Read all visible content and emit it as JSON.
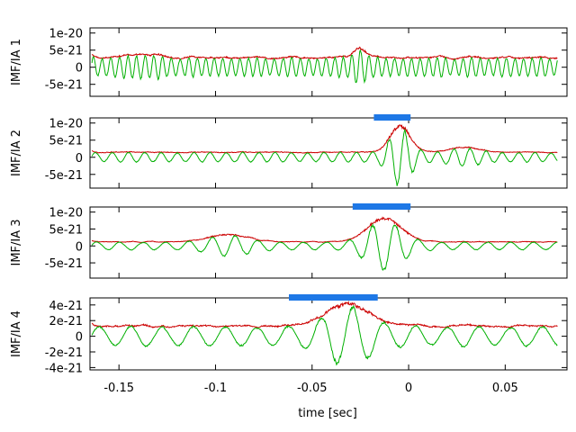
{
  "chart_data": {
    "type": "line",
    "xlabel": "time [sec]",
    "xlim": [
      -0.165,
      0.082
    ],
    "x_ticks": [
      -0.15,
      -0.1,
      -0.05,
      0,
      0.05
    ],
    "x_tick_labels": [
      "-0.15",
      "-0.1",
      "-0.05",
      "0",
      "0.05"
    ],
    "series_colors": {
      "signal": "#00b000",
      "envelope": "#cc0000",
      "marker": "#1e78e6"
    },
    "panels": [
      {
        "ylabel": "IMF/IA 1",
        "ylim": [
          -8.5e-21,
          1.15e-20
        ],
        "y_ticks": [
          1e-20,
          5e-21,
          0,
          -5e-21
        ],
        "y_tick_labels": [
          "1e-20",
          "5e-21",
          "0",
          "-5e-21"
        ],
        "marker": null,
        "signal": {
          "amp_base": 3.5e-21,
          "period": 0.0045,
          "bursts": [
            {
              "t": -0.027,
              "w": 0.004,
              "a": 3e-21
            },
            {
              "t": -0.14,
              "w": 0.01,
              "a": 1e-21
            }
          ]
        }
      },
      {
        "ylabel": "IMF/IA 2",
        "ylim": [
          -9e-21,
          1.15e-20
        ],
        "y_ticks": [
          1e-20,
          5e-21,
          0,
          -5e-21
        ],
        "y_tick_labels": [
          "1e-20",
          "5e-21",
          "0",
          "-5e-21"
        ],
        "marker": {
          "start": -0.018,
          "end": 0.001
        },
        "signal": {
          "amp_base": 1.8e-21,
          "period": 0.0085,
          "bursts": [
            {
              "t": -0.006,
              "w": 0.007,
              "a": 7.5e-21
            },
            {
              "t": 0.028,
              "w": 0.01,
              "a": 1.5e-21
            }
          ]
        }
      },
      {
        "ylabel": "IMF/IA 3",
        "ylim": [
          -9.5e-21,
          1.15e-20
        ],
        "y_ticks": [
          1e-20,
          5e-21,
          0,
          -5e-21
        ],
        "y_tick_labels": [
          "1e-20",
          "5e-21",
          "0",
          "-5e-21"
        ],
        "marker": {
          "start": -0.029,
          "end": 0.001
        },
        "signal": {
          "amp_base": 1.5e-21,
          "period": 0.012,
          "bursts": [
            {
              "t": -0.014,
              "w": 0.012,
              "a": 6.5e-21
            },
            {
              "t": -0.095,
              "w": 0.014,
              "a": 2e-21
            }
          ]
        }
      },
      {
        "ylabel": "IMF/IA 4",
        "ylim": [
          -4.3e-21,
          4.9e-21
        ],
        "y_ticks": [
          4e-21,
          2e-21,
          0,
          -2e-21,
          -4e-21
        ],
        "y_tick_labels": [
          "4e-21",
          "2e-21",
          "0",
          "-2e-21",
          "-4e-21"
        ],
        "marker": {
          "start": -0.062,
          "end": -0.016
        },
        "signal": {
          "amp_base": 1.6e-21,
          "period": 0.0165,
          "bursts": [
            {
              "t": -0.033,
              "w": 0.016,
              "a": 2.6e-21
            }
          ]
        }
      }
    ]
  }
}
